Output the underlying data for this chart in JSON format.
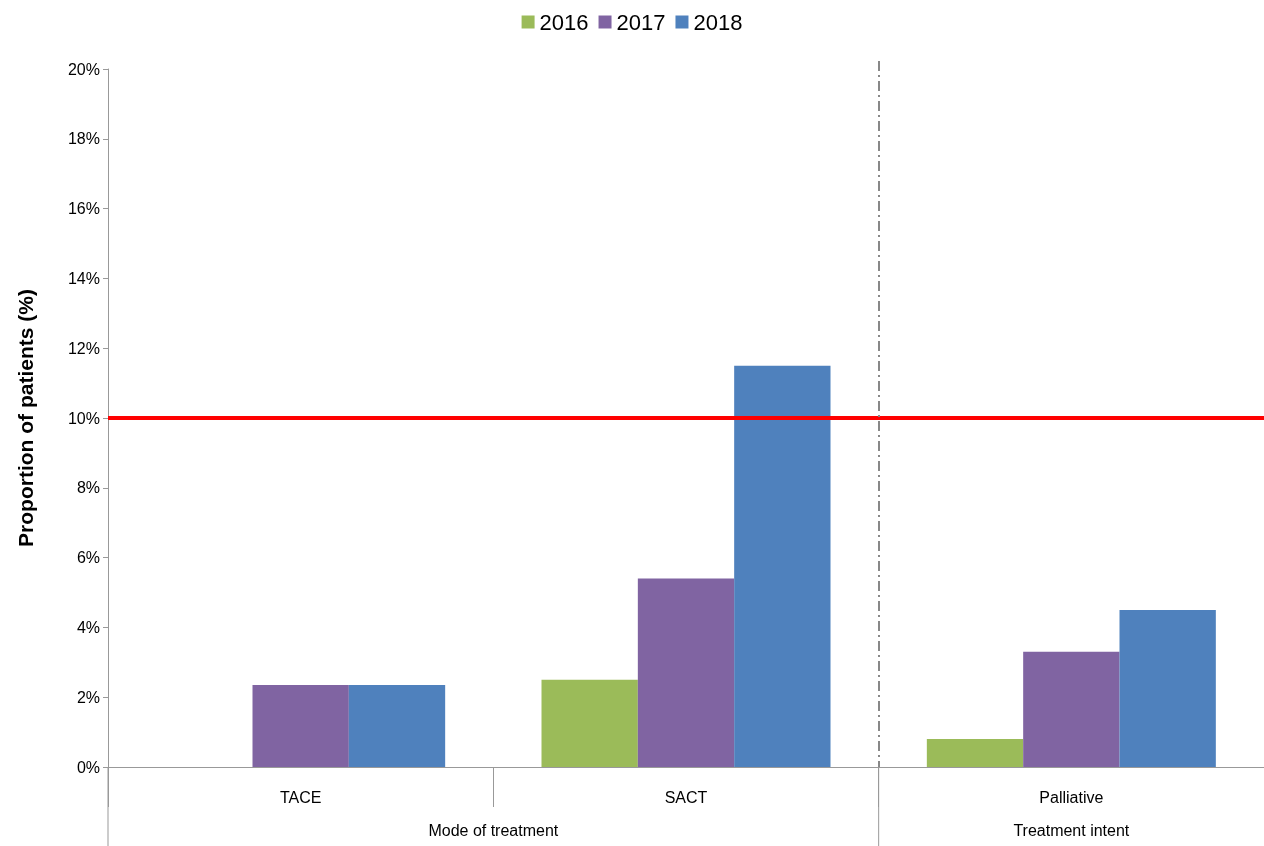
{
  "chart_data": {
    "type": "bar",
    "ylabel": "Proportion of patients (%)",
    "categories": [
      "TACE",
      "SACT",
      "Palliative"
    ],
    "series": [
      {
        "name": "2016",
        "color": "#9bbb59",
        "values": [
          0,
          2.5,
          0.8
        ]
      },
      {
        "name": "2017",
        "color": "#8064a2",
        "values": [
          2.35,
          5.4,
          3.3
        ]
      },
      {
        "name": "2018",
        "color": "#4f81bd",
        "values": [
          2.35,
          11.5,
          4.5
        ]
      }
    ],
    "ylim": [
      0,
      20
    ],
    "yticks": [
      {
        "value": 0,
        "label": "0%"
      },
      {
        "value": 2,
        "label": "2%"
      },
      {
        "value": 4,
        "label": "4%"
      },
      {
        "value": 6,
        "label": "6%"
      },
      {
        "value": 8,
        "label": "8%"
      },
      {
        "value": 10,
        "label": "10%"
      },
      {
        "value": 12,
        "label": "12%"
      },
      {
        "value": 14,
        "label": "14%"
      },
      {
        "value": 16,
        "label": "16%"
      },
      {
        "value": 18,
        "label": "18%"
      },
      {
        "value": 20,
        "label": "20%"
      }
    ],
    "ref_lines": [
      {
        "axis": "y",
        "value": 10,
        "color": "#ff0000",
        "line_style": "solid"
      },
      {
        "axis": "x",
        "value": "Palliative",
        "color": "#888888",
        "line_style": "dashed"
      }
    ],
    "annotations": [
      "Mode of treatment",
      "Treatment intent"
    ],
    "grid": false,
    "legend": "top"
  }
}
